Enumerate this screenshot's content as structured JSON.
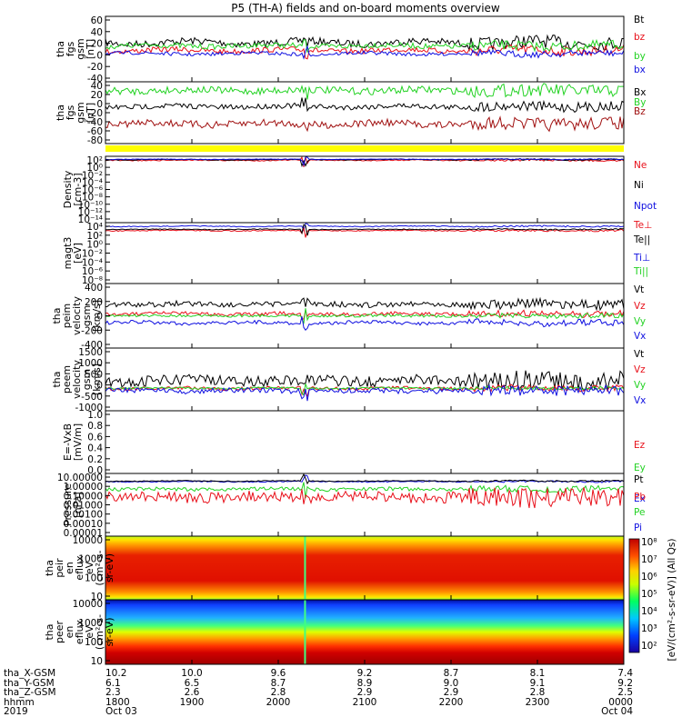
{
  "title": "P5 (TH-A) fields and on-board moments overview",
  "colors": {
    "black": "#000000",
    "red": "#e8101a",
    "green": "#22d222",
    "blue": "#1010e0",
    "darkred": "#a01010",
    "yellow": "#ffff00"
  },
  "chart_data": [
    {
      "type": "line",
      "ylabel": [
        "tha",
        "fgs",
        "gsm",
        "[nT]"
      ],
      "yticks": [
        "60",
        "40",
        "20",
        "0",
        "-20",
        "-40"
      ],
      "ylim": [
        -40,
        60
      ],
      "series": [
        {
          "name": "Bt",
          "color": "black"
        },
        {
          "name": "bz",
          "color": "red"
        },
        {
          "name": "by",
          "color": "green"
        },
        {
          "name": "bx",
          "color": "blue"
        }
      ]
    },
    {
      "type": "line",
      "ylabel": [
        "tha",
        "fgs",
        "gsm",
        "[nT]"
      ],
      "yticks": [
        "40",
        "20",
        "0",
        "-20",
        "-40",
        "-60",
        "-80"
      ],
      "ylim": [
        -80,
        40
      ],
      "series": [
        {
          "name": "Bx",
          "color": "black"
        },
        {
          "name": "By",
          "color": "green"
        },
        {
          "name": "Bz",
          "color": "darkred"
        }
      ]
    },
    {
      "type": "line",
      "ylabel": [
        "Density",
        "[cm-3]"
      ],
      "yticks": [
        "10²",
        "10⁰",
        "10⁻²",
        "10⁻⁴",
        "10⁻⁶",
        "10⁻⁸",
        "10⁻¹⁰",
        "10⁻¹²",
        "10⁻¹⁴"
      ],
      "series": [
        {
          "name": "Ne",
          "color": "red"
        },
        {
          "name": "Ni",
          "color": "black"
        },
        {
          "name": "Npot",
          "color": "blue"
        }
      ]
    },
    {
      "type": "line",
      "ylabel": [
        "magt3",
        "[eV]"
      ],
      "yticks": [
        "10⁴",
        "10²",
        "10⁰",
        "10⁻²",
        "10⁻⁴",
        "10⁻⁶",
        "10⁻⁸"
      ],
      "series": [
        {
          "name": "Te⊥",
          "color": "red"
        },
        {
          "name": "Te||",
          "color": "black"
        },
        {
          "name": "Ti⊥",
          "color": "blue"
        },
        {
          "name": "Ti||",
          "color": "green"
        }
      ]
    },
    {
      "type": "line",
      "ylabel": [
        "tha",
        "peim",
        "velocity",
        "gsm",
        "[km/s]"
      ],
      "yticks": [
        "400",
        "200",
        "0",
        "-200",
        "-400"
      ],
      "ylim": [
        -400,
        400
      ],
      "series": [
        {
          "name": "Vt",
          "color": "black"
        },
        {
          "name": "Vz",
          "color": "red"
        },
        {
          "name": "Vy",
          "color": "green"
        },
        {
          "name": "Vx",
          "color": "blue"
        }
      ]
    },
    {
      "type": "line",
      "ylabel": [
        "tha",
        "peem",
        "velocity",
        "gsm",
        "[km/s]"
      ],
      "yticks": [
        "1500",
        "1000",
        "500",
        "0",
        "-500",
        "-1000"
      ],
      "ylim": [
        -1000,
        1500
      ],
      "series": [
        {
          "name": "Vt",
          "color": "black"
        },
        {
          "name": "Vz",
          "color": "red"
        },
        {
          "name": "Vy",
          "color": "green"
        },
        {
          "name": "Vx",
          "color": "blue"
        }
      ]
    },
    {
      "type": "line",
      "ylabel": [
        "E=-VxB",
        "[mV/m]"
      ],
      "yticks": [
        "1.0",
        "0.8",
        "0.6",
        "0.4",
        "0.2",
        "0.0"
      ],
      "ylim": [
        0,
        1
      ],
      "series": [
        {
          "name": "Ez",
          "color": "red"
        },
        {
          "name": "Ey",
          "color": "green"
        },
        {
          "name": "Ex",
          "color": "blue"
        }
      ]
    },
    {
      "type": "line",
      "ylabel": [
        "Pressure",
        "[nPa]"
      ],
      "yticks": [
        "10.00000",
        "1.00000",
        "0.10000",
        "0.01000",
        "0.00100",
        "0.00010",
        "0.00001"
      ],
      "series": [
        {
          "name": "Pt",
          "color": "black"
        },
        {
          "name": "Pb",
          "color": "red"
        },
        {
          "name": "Pe",
          "color": "green"
        },
        {
          "name": "Pi",
          "color": "blue"
        }
      ]
    },
    {
      "type": "heatmap",
      "ylabel": [
        "tha",
        "peir",
        "en",
        "eflux",
        "eV",
        "(cm²-s-",
        "sr-eV)"
      ],
      "yticks": [
        "10000",
        "1000",
        "100",
        "10"
      ]
    },
    {
      "type": "heatmap",
      "ylabel": [
        "tha",
        "peer",
        "en",
        "eflux",
        "eV",
        "(cm²-s-",
        "sr-eV)"
      ],
      "yticks": [
        "10000",
        "1000",
        "100",
        "10"
      ]
    }
  ],
  "colorbar": {
    "ticks": [
      "10⁸",
      "10⁷",
      "10⁶",
      "10⁵",
      "10⁴",
      "10³",
      "10²"
    ],
    "label": "[eV/(cm²-s-sr-eV)] (All Qs)"
  },
  "xaxis": {
    "row_labels": [
      "tha_X-GSM",
      "tha_Y-GSM",
      "tha_Z-GSM",
      "hhmm",
      "2019"
    ],
    "columns": [
      [
        "10.2",
        "6.1",
        "2.3",
        "1800",
        "Oct 03"
      ],
      [
        "10.0",
        "6.5",
        "2.6",
        "1900",
        ""
      ],
      [
        "9.6",
        "8.7",
        "2.8",
        "2000",
        ""
      ],
      [
        "9.2",
        "8.9",
        "2.9",
        "2100",
        ""
      ],
      [
        "8.7",
        "9.0",
        "2.9",
        "2200",
        ""
      ],
      [
        "8.1",
        "9.1",
        "2.8",
        "2300",
        ""
      ],
      [
        "7.4",
        "9.2",
        "2.5",
        "0000",
        "Oct 04"
      ]
    ]
  }
}
